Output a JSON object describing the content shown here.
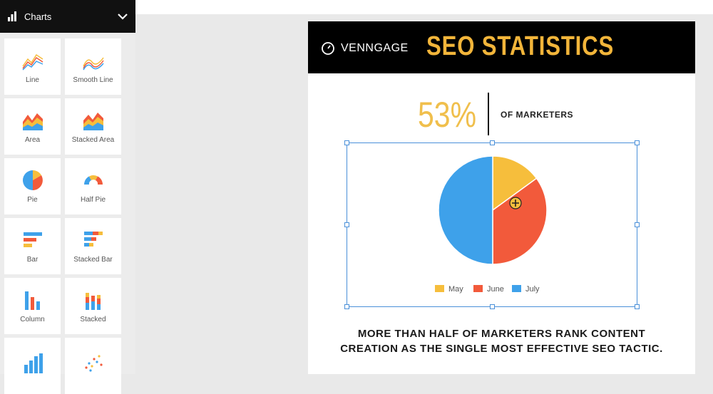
{
  "sidebar": {
    "title": "Charts",
    "tiles": [
      {
        "label": "Line"
      },
      {
        "label": "Smooth Line"
      },
      {
        "label": "Area"
      },
      {
        "label": "Stacked Area"
      },
      {
        "label": "Pie"
      },
      {
        "label": "Half Pie"
      },
      {
        "label": "Bar"
      },
      {
        "label": "Stacked Bar"
      },
      {
        "label": "Column"
      },
      {
        "label": "Stacked"
      },
      {
        "label": ""
      },
      {
        "label": ""
      }
    ]
  },
  "canvas": {
    "brand": "VENNGAGE",
    "title": "SEO STATISTICS",
    "stat_value": "53%",
    "stat_label": "OF MARKETERS",
    "caption_line1": "MORE THAN HALF OF MARKETERS RANK CONTENT",
    "caption_line2": "CREATION AS THE SINGLE MOST EFFECTIVE SEO TACTIC."
  },
  "colors": {
    "accent_gold": "#f2b53a",
    "may": "#f6be3c",
    "june": "#f25a3b",
    "july": "#3ea1ea",
    "selection": "#4a90d9"
  },
  "chart_data": {
    "type": "pie",
    "categories": [
      "May",
      "June",
      "July"
    ],
    "values": [
      15,
      35,
      50
    ],
    "colors": [
      "#f6be3c",
      "#f25a3b",
      "#3ea1ea"
    ],
    "legend": "bottom"
  }
}
